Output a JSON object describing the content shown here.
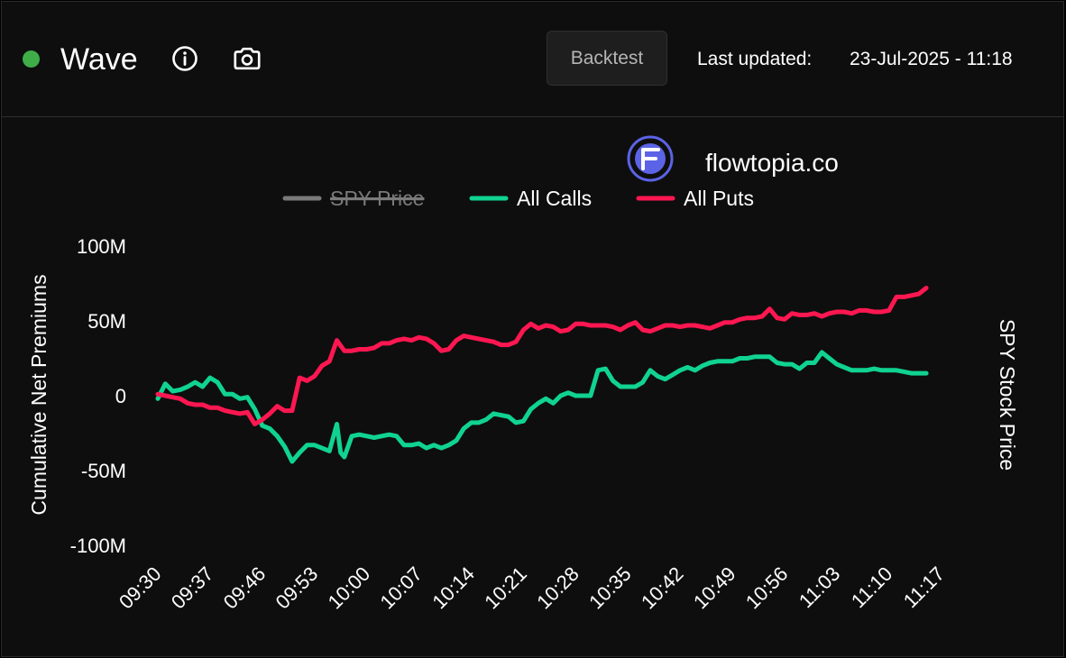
{
  "header": {
    "title": "Wave",
    "status_color": "#3fae49",
    "backtest_label": "Backtest",
    "last_updated_label": "Last updated:",
    "last_updated_value": "23-Jul-2025 - 11:18"
  },
  "brand": {
    "name": "flowtopia.co",
    "logo_color": "#5b63e6"
  },
  "chart_data": {
    "type": "line",
    "ylabel": "Cumulative Net Premiums",
    "y2label": "SPY Stock Price",
    "ylim": [
      -100,
      100
    ],
    "y_unit": "M",
    "yticks": [
      "100M",
      "50M",
      "0",
      "-50M",
      "-100M"
    ],
    "ytick_values": [
      100,
      50,
      0,
      -50,
      -100
    ],
    "xlim": [
      0,
      110
    ],
    "x_categories": [
      "09:30",
      "09:37",
      "09:46",
      "09:53",
      "10:00",
      "10:07",
      "10:14",
      "10:21",
      "10:28",
      "10:35",
      "10:42",
      "10:49",
      "10:56",
      "11:03",
      "11:10",
      "11:17"
    ],
    "xtick_positions": [
      0,
      7,
      14,
      21,
      28,
      35,
      42,
      49,
      56,
      63,
      70,
      77,
      84,
      91,
      98,
      105
    ],
    "legend": [
      "SPY Price",
      "All Calls",
      "All Puts"
    ],
    "legend_position": "top",
    "grid": false,
    "series": [
      {
        "name": "SPY Price",
        "color": "#7a7a7a",
        "hidden": true,
        "points": []
      },
      {
        "name": "All Calls",
        "color": "#10d391",
        "points": [
          [
            0,
            -2
          ],
          [
            1,
            8
          ],
          [
            2,
            3
          ],
          [
            3,
            4
          ],
          [
            4,
            6
          ],
          [
            5,
            9
          ],
          [
            6,
            6
          ],
          [
            7,
            12
          ],
          [
            8,
            9
          ],
          [
            9,
            1
          ],
          [
            10,
            1
          ],
          [
            11,
            -2
          ],
          [
            12,
            -1
          ],
          [
            13,
            -9
          ],
          [
            14,
            -20
          ],
          [
            15,
            -22
          ],
          [
            16,
            -27
          ],
          [
            17,
            -34
          ],
          [
            18,
            -44
          ],
          [
            19,
            -38
          ],
          [
            20,
            -33
          ],
          [
            21,
            -33
          ],
          [
            22,
            -35
          ],
          [
            23,
            -37
          ],
          [
            24,
            -19
          ],
          [
            24.5,
            -38
          ],
          [
            25,
            -41
          ],
          [
            26,
            -27
          ],
          [
            27,
            -26
          ],
          [
            28,
            -27
          ],
          [
            29,
            -28
          ],
          [
            30,
            -27
          ],
          [
            31,
            -26
          ],
          [
            32,
            -27
          ],
          [
            33,
            -33
          ],
          [
            34,
            -33
          ],
          [
            35,
            -32
          ],
          [
            36,
            -35
          ],
          [
            37,
            -33
          ],
          [
            38,
            -35
          ],
          [
            39,
            -33
          ],
          [
            40,
            -30
          ],
          [
            41,
            -22
          ],
          [
            42,
            -18
          ],
          [
            43,
            -18
          ],
          [
            44,
            -16
          ],
          [
            45,
            -12
          ],
          [
            46,
            -13
          ],
          [
            47,
            -14
          ],
          [
            48,
            -18
          ],
          [
            49,
            -17
          ],
          [
            50,
            -9
          ],
          [
            51,
            -5
          ],
          [
            52,
            -2
          ],
          [
            53,
            -5
          ],
          [
            54,
            0
          ],
          [
            55,
            2
          ],
          [
            56,
            0
          ],
          [
            57,
            0
          ],
          [
            58,
            0
          ],
          [
            59,
            17
          ],
          [
            60,
            18
          ],
          [
            61,
            10
          ],
          [
            62,
            6
          ],
          [
            63,
            6
          ],
          [
            64,
            6
          ],
          [
            65,
            9
          ],
          [
            66,
            17
          ],
          [
            67,
            13
          ],
          [
            68,
            11
          ],
          [
            69,
            14
          ],
          [
            70,
            17
          ],
          [
            71,
            19
          ],
          [
            72,
            17
          ],
          [
            73,
            20
          ],
          [
            74,
            22
          ],
          [
            75,
            23
          ],
          [
            76,
            23
          ],
          [
            77,
            23
          ],
          [
            78,
            25
          ],
          [
            79,
            25
          ],
          [
            80,
            26
          ],
          [
            81,
            26
          ],
          [
            82,
            26
          ],
          [
            83,
            22
          ],
          [
            84,
            21
          ],
          [
            85,
            21
          ],
          [
            86,
            18
          ],
          [
            87,
            22
          ],
          [
            88,
            22
          ],
          [
            89,
            29
          ],
          [
            90,
            25
          ],
          [
            91,
            21
          ],
          [
            92,
            19
          ],
          [
            93,
            17
          ],
          [
            94,
            17
          ],
          [
            95,
            17
          ],
          [
            96,
            18
          ],
          [
            97,
            17
          ],
          [
            98,
            17
          ],
          [
            99,
            17
          ],
          [
            100,
            16
          ],
          [
            101,
            15
          ],
          [
            102,
            15
          ],
          [
            103,
            15
          ]
        ]
      },
      {
        "name": "All Puts",
        "color": "#ff1751",
        "points": [
          [
            0,
            1
          ],
          [
            1,
            0
          ],
          [
            2,
            -1
          ],
          [
            3,
            -2
          ],
          [
            4,
            -5
          ],
          [
            5,
            -6
          ],
          [
            6,
            -6
          ],
          [
            7,
            -8
          ],
          [
            8,
            -8
          ],
          [
            9,
            -10
          ],
          [
            10,
            -11
          ],
          [
            11,
            -12
          ],
          [
            12,
            -11
          ],
          [
            13,
            -19
          ],
          [
            14,
            -16
          ],
          [
            15,
            -12
          ],
          [
            16,
            -7
          ],
          [
            17,
            -10
          ],
          [
            18,
            -10
          ],
          [
            19,
            12
          ],
          [
            20,
            10
          ],
          [
            21,
            13
          ],
          [
            22,
            20
          ],
          [
            23,
            23
          ],
          [
            24,
            37
          ],
          [
            25,
            30
          ],
          [
            26,
            30
          ],
          [
            27,
            31
          ],
          [
            28,
            31
          ],
          [
            29,
            32
          ],
          [
            30,
            35
          ],
          [
            31,
            35
          ],
          [
            32,
            37
          ],
          [
            33,
            38
          ],
          [
            34,
            37
          ],
          [
            35,
            39
          ],
          [
            36,
            38
          ],
          [
            37,
            35
          ],
          [
            38,
            30
          ],
          [
            39,
            31
          ],
          [
            40,
            37
          ],
          [
            41,
            40
          ],
          [
            42,
            39
          ],
          [
            43,
            38
          ],
          [
            44,
            37
          ],
          [
            45,
            36
          ],
          [
            46,
            34
          ],
          [
            47,
            34
          ],
          [
            48,
            36
          ],
          [
            49,
            44
          ],
          [
            50,
            48
          ],
          [
            51,
            45
          ],
          [
            52,
            47
          ],
          [
            53,
            46
          ],
          [
            54,
            43
          ],
          [
            55,
            44
          ],
          [
            56,
            48
          ],
          [
            57,
            48
          ],
          [
            58,
            47
          ],
          [
            59,
            47
          ],
          [
            60,
            47
          ],
          [
            61,
            46
          ],
          [
            62,
            44
          ],
          [
            63,
            47
          ],
          [
            64,
            49
          ],
          [
            65,
            44
          ],
          [
            66,
            43
          ],
          [
            67,
            45
          ],
          [
            68,
            47
          ],
          [
            69,
            47
          ],
          [
            70,
            46
          ],
          [
            71,
            47
          ],
          [
            72,
            47
          ],
          [
            73,
            46
          ],
          [
            74,
            45
          ],
          [
            75,
            47
          ],
          [
            76,
            49
          ],
          [
            77,
            49
          ],
          [
            78,
            51
          ],
          [
            79,
            52
          ],
          [
            80,
            52
          ],
          [
            81,
            53
          ],
          [
            82,
            58
          ],
          [
            83,
            52
          ],
          [
            84,
            51
          ],
          [
            85,
            55
          ],
          [
            86,
            54
          ],
          [
            87,
            54
          ],
          [
            88,
            55
          ],
          [
            89,
            53
          ],
          [
            90,
            55
          ],
          [
            91,
            56
          ],
          [
            92,
            56
          ],
          [
            93,
            55
          ],
          [
            94,
            57
          ],
          [
            95,
            57
          ],
          [
            96,
            56
          ],
          [
            97,
            56
          ],
          [
            98,
            57
          ],
          [
            99,
            66
          ],
          [
            100,
            66
          ],
          [
            101,
            67
          ],
          [
            102,
            68
          ],
          [
            103,
            72
          ]
        ]
      }
    ]
  }
}
